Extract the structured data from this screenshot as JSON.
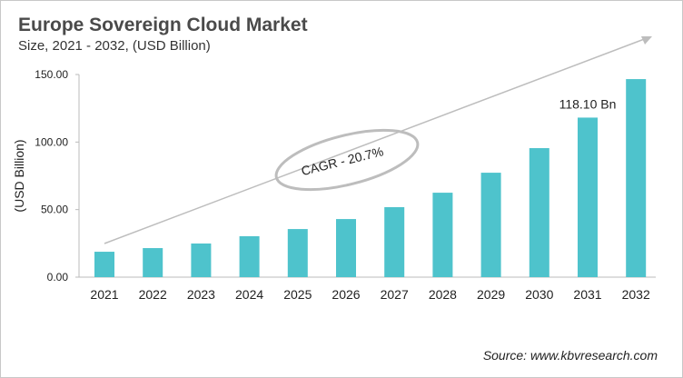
{
  "chart_data": {
    "type": "bar",
    "title": "Europe Sovereign Cloud Market",
    "subtitle": "Size, 2021 - 2032, (USD Billion)",
    "ylabel": "(USD Billion)",
    "xlabel": "",
    "categories": [
      "2021",
      "2022",
      "2023",
      "2024",
      "2025",
      "2026",
      "2027",
      "2028",
      "2029",
      "2030",
      "2031",
      "2032"
    ],
    "values": [
      18.8,
      21.5,
      24.9,
      30.3,
      35.6,
      43.0,
      51.8,
      62.5,
      77.3,
      95.5,
      118.1,
      146.6
    ],
    "ylim": [
      0,
      150
    ],
    "yticks": [
      "0.00",
      "50.00",
      "100.00",
      "150.00"
    ],
    "grid": false,
    "bar_color": "#4ec3cc",
    "annotations": {
      "data_label": {
        "category": "2031",
        "text": "118.10 Bn"
      },
      "cagr": "CAGR - 20.7%"
    },
    "source": "Source: www.kbvresearch.com"
  }
}
